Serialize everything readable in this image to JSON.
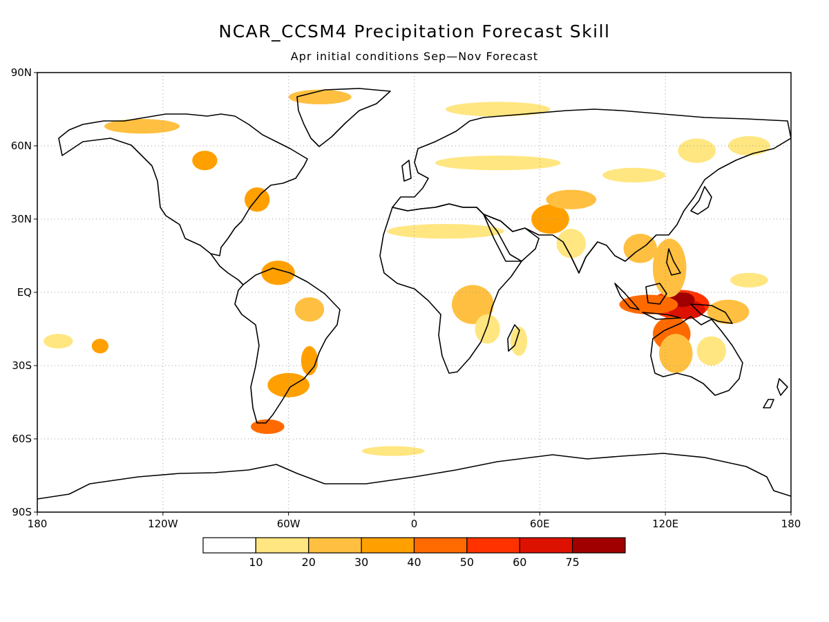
{
  "title": "NCAR_CCSM4 Precipitation Forecast Skill",
  "subtitle": "Apr initial conditions   Sep—Nov Forecast",
  "lat_axis": [
    {
      "label": "90N",
      "lat": 90
    },
    {
      "label": "60N",
      "lat": 60
    },
    {
      "label": "30N",
      "lat": 30
    },
    {
      "label": "EQ",
      "lat": 0
    },
    {
      "label": "30S",
      "lat": -30
    },
    {
      "label": "60S",
      "lat": -60
    },
    {
      "label": "90S",
      "lat": -90
    }
  ],
  "lon_axis": [
    {
      "label": "180",
      "lon": -180
    },
    {
      "label": "120W",
      "lon": -120
    },
    {
      "label": "60W",
      "lon": -60
    },
    {
      "label": "0",
      "lon": 0
    },
    {
      "label": "60E",
      "lon": 60
    },
    {
      "label": "120E",
      "lon": 120
    },
    {
      "label": "180",
      "lon": 180
    }
  ],
  "colorbar": {
    "colors": [
      "#ffffff",
      "#ffe680",
      "#ffbf40",
      "#ffa000",
      "#ff6a00",
      "#ff3200",
      "#dd1100",
      "#a00000"
    ],
    "labels": [
      "10",
      "20",
      "30",
      "40",
      "50",
      "60",
      "75"
    ]
  },
  "skill_regions": [
    {
      "lon": 127,
      "lat": -5,
      "rx": 14,
      "ry": 6,
      "level": 5
    },
    {
      "lon": 130,
      "lat": -7,
      "rx": 9,
      "ry": 4,
      "level": 6
    },
    {
      "lon": 128,
      "lat": -3,
      "rx": 6,
      "ry": 3,
      "level": 7
    },
    {
      "lon": 112,
      "lat": -5,
      "rx": 14,
      "ry": 4,
      "level": 4
    },
    {
      "lon": 123,
      "lat": -17,
      "rx": 9,
      "ry": 7,
      "level": 4
    },
    {
      "lon": 125,
      "lat": -25,
      "rx": 8,
      "ry": 8,
      "level": 2
    },
    {
      "lon": 122,
      "lat": 10,
      "rx": 8,
      "ry": 12,
      "level": 2
    },
    {
      "lon": 108,
      "lat": 18,
      "rx": 8,
      "ry": 6,
      "level": 2
    },
    {
      "lon": 150,
      "lat": -8,
      "rx": 10,
      "ry": 5,
      "level": 2
    },
    {
      "lon": 142,
      "lat": -24,
      "rx": 7,
      "ry": 6,
      "level": 1
    },
    {
      "lon": 160,
      "lat": 5,
      "rx": 9,
      "ry": 3,
      "level": 1
    },
    {
      "lon": 65,
      "lat": 30,
      "rx": 9,
      "ry": 6,
      "level": 3
    },
    {
      "lon": 75,
      "lat": 38,
      "rx": 12,
      "ry": 4,
      "level": 2
    },
    {
      "lon": 75,
      "lat": 20,
      "rx": 7,
      "ry": 6,
      "level": 1
    },
    {
      "lon": 40,
      "lat": 53,
      "rx": 30,
      "ry": 3,
      "level": 1
    },
    {
      "lon": 105,
      "lat": 48,
      "rx": 15,
      "ry": 3,
      "level": 1
    },
    {
      "lon": 135,
      "lat": 58,
      "rx": 9,
      "ry": 5,
      "level": 1
    },
    {
      "lon": 15,
      "lat": 25,
      "rx": 28,
      "ry": 3,
      "level": 1
    },
    {
      "lon": 28,
      "lat": -5,
      "rx": 10,
      "ry": 8,
      "level": 2
    },
    {
      "lon": 35,
      "lat": -15,
      "rx": 6,
      "ry": 6,
      "level": 1
    },
    {
      "lon": 40,
      "lat": 75,
      "rx": 25,
      "ry": 3,
      "level": 1
    },
    {
      "lon": -45,
      "lat": 80,
      "rx": 15,
      "ry": 3,
      "level": 2
    },
    {
      "lon": -130,
      "lat": 68,
      "rx": 18,
      "ry": 3,
      "level": 2
    },
    {
      "lon": -100,
      "lat": 54,
      "rx": 6,
      "ry": 4,
      "level": 3
    },
    {
      "lon": -75,
      "lat": 38,
      "rx": 6,
      "ry": 5,
      "level": 3
    },
    {
      "lon": -65,
      "lat": 8,
      "rx": 8,
      "ry": 5,
      "level": 3
    },
    {
      "lon": -50,
      "lat": -7,
      "rx": 7,
      "ry": 5,
      "level": 2
    },
    {
      "lon": -60,
      "lat": -38,
      "rx": 10,
      "ry": 5,
      "level": 3
    },
    {
      "lon": -50,
      "lat": -28,
      "rx": 4,
      "ry": 6,
      "level": 3
    },
    {
      "lon": -70,
      "lat": -55,
      "rx": 8,
      "ry": 3,
      "level": 4
    },
    {
      "lon": -150,
      "lat": -22,
      "rx": 4,
      "ry": 3,
      "level": 3
    },
    {
      "lon": -170,
      "lat": -20,
      "rx": 7,
      "ry": 3,
      "level": 1
    },
    {
      "lon": 160,
      "lat": 60,
      "rx": 10,
      "ry": 4,
      "level": 1
    },
    {
      "lon": -10,
      "lat": -65,
      "rx": 15,
      "ry": 2,
      "level": 1
    },
    {
      "lon": 50,
      "lat": -20,
      "rx": 4,
      "ry": 6,
      "level": 1
    }
  ]
}
